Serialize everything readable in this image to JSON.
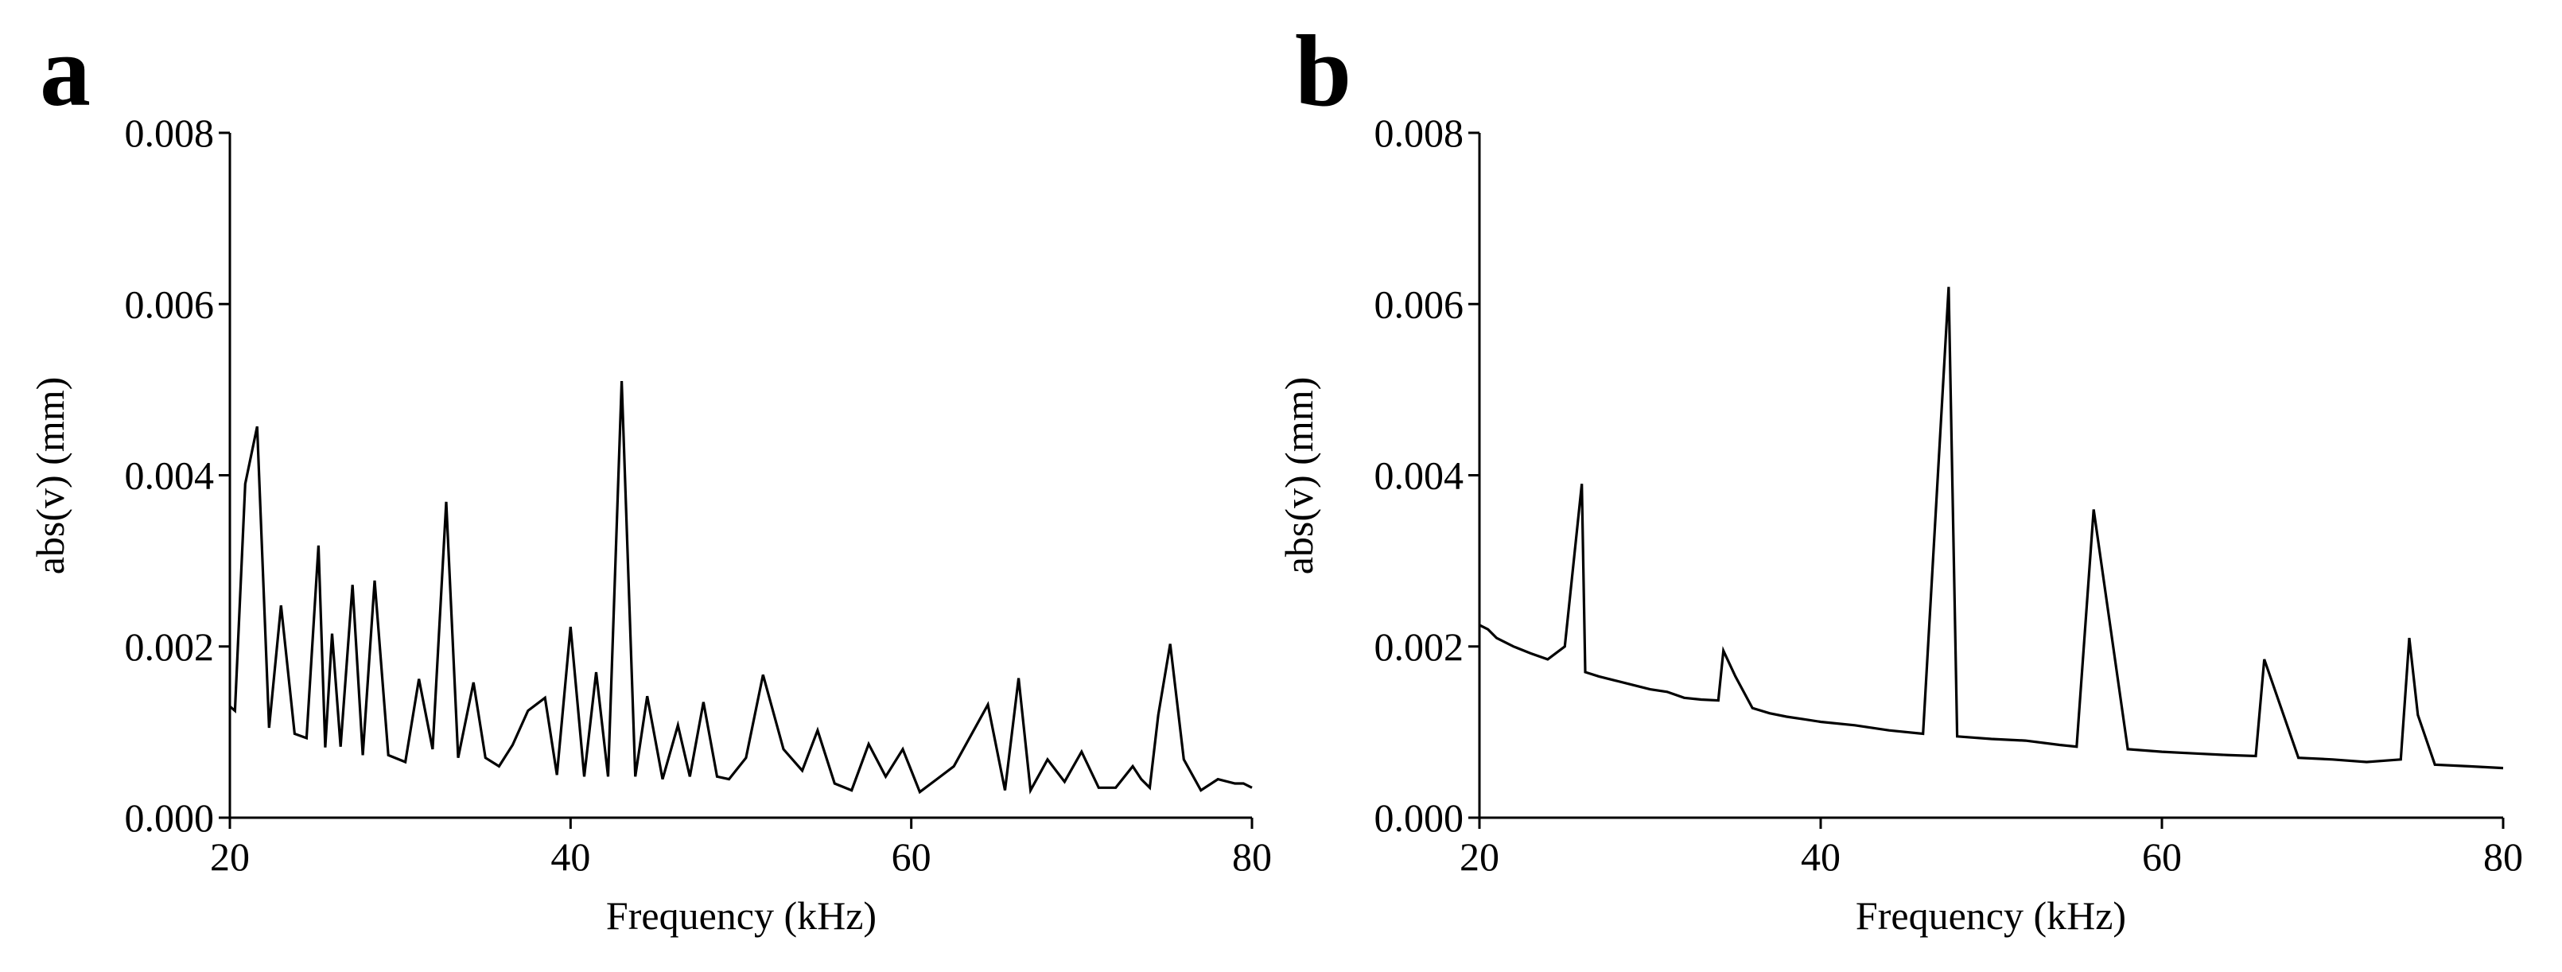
{
  "chart_data": [
    {
      "panel": "a",
      "type": "line",
      "xlabel": "Frequency (kHz)",
      "ylabel": "abs(v) (mm)",
      "xlim": [
        20,
        80
      ],
      "ylim": [
        0,
        0.008
      ],
      "xticks": [
        20,
        40,
        60,
        80
      ],
      "yticks": [
        "0.000",
        "0.002",
        "0.004",
        "0.006",
        "0.008"
      ],
      "grid": false,
      "series": [
        {
          "x": [
            20.0,
            20.3,
            20.9,
            21.6,
            22.3,
            23.0,
            23.8,
            24.5,
            25.2,
            25.6,
            26.0,
            26.5,
            27.2,
            27.8,
            28.5,
            29.3,
            30.3,
            31.1,
            31.9,
            32.7,
            33.4,
            34.3,
            35.0,
            35.8,
            36.6,
            37.5,
            38.5,
            39.2,
            40.0,
            40.8,
            41.5,
            42.2,
            43.0,
            43.8,
            44.5,
            45.4,
            46.3,
            47.0,
            47.8,
            48.6,
            49.3,
            50.3,
            51.3,
            52.5,
            53.6,
            54.5,
            55.5,
            56.5,
            57.5,
            58.5,
            59.5,
            60.5,
            61.5,
            62.5,
            64.5,
            65.5,
            66.3,
            67.0,
            68.0,
            69.0,
            70.0,
            71.0,
            72.0,
            73.0,
            73.5,
            74.0,
            74.5,
            75.2,
            76.0,
            77.0,
            78.0,
            79.0,
            79.5,
            80.0
          ],
          "y": [
            0.0013,
            0.00125,
            0.0039,
            0.00457,
            0.00105,
            0.00248,
            0.00098,
            0.00093,
            0.00318,
            0.00082,
            0.00215,
            0.00083,
            0.00272,
            0.00073,
            0.00277,
            0.00073,
            0.00065,
            0.00162,
            0.0008,
            0.00369,
            0.0007,
            0.00158,
            0.0007,
            0.0006,
            0.00085,
            0.00125,
            0.0014,
            0.0005,
            0.00223,
            0.00048,
            0.0017,
            0.00048,
            0.0051,
            0.00048,
            0.00142,
            0.00045,
            0.00108,
            0.00048,
            0.00135,
            0.00048,
            0.00045,
            0.0007,
            0.00167,
            0.0008,
            0.00055,
            0.00102,
            0.0004,
            0.00032,
            0.00086,
            0.00048,
            0.0008,
            0.0003,
            0.00045,
            0.0006,
            0.00132,
            0.00032,
            0.00163,
            0.00032,
            0.00068,
            0.00042,
            0.00077,
            0.00035,
            0.00035,
            0.0006,
            0.00045,
            0.00035,
            0.0012,
            0.00203,
            0.00068,
            0.00032,
            0.00045,
            0.0004,
            0.0004,
            0.00035
          ]
        }
      ]
    },
    {
      "panel": "b",
      "type": "line",
      "xlabel": "Frequency (kHz)",
      "ylabel": "abs(v) (mm)",
      "xlim": [
        20,
        80
      ],
      "ylim": [
        0,
        0.008
      ],
      "xticks": [
        20,
        40,
        60,
        80
      ],
      "yticks": [
        "0.000",
        "0.002",
        "0.004",
        "0.006",
        "0.008"
      ],
      "grid": false,
      "series": [
        {
          "x": [
            20.0,
            20.5,
            21.0,
            22.0,
            23.0,
            24.0,
            25.0,
            26.0,
            26.2,
            27.0,
            28.0,
            29.0,
            30.0,
            31.0,
            32.0,
            33.0,
            34.0,
            34.3,
            35.0,
            36.0,
            37.0,
            38.0,
            39.0,
            40.0,
            42.0,
            44.0,
            46.0,
            47.5,
            48.0,
            50.0,
            52.0,
            54.0,
            55.0,
            56.0,
            58.0,
            60.0,
            62.0,
            64.0,
            65.5,
            66.0,
            68.0,
            70.0,
            72.0,
            74.0,
            74.5,
            75.0,
            76.0,
            78.0,
            80.0
          ],
          "y": [
            0.00225,
            0.0022,
            0.0021,
            0.002,
            0.00192,
            0.00185,
            0.002,
            0.0039,
            0.0017,
            0.00165,
            0.0016,
            0.00155,
            0.0015,
            0.00147,
            0.0014,
            0.00138,
            0.00137,
            0.00195,
            0.00165,
            0.00128,
            0.00122,
            0.00118,
            0.00115,
            0.00112,
            0.00108,
            0.00102,
            0.00098,
            0.0062,
            0.00095,
            0.00092,
            0.0009,
            0.00085,
            0.00083,
            0.0036,
            0.0008,
            0.00077,
            0.00075,
            0.00073,
            0.00072,
            0.00185,
            0.0007,
            0.00068,
            0.00065,
            0.00068,
            0.0021,
            0.0012,
            0.00062,
            0.0006,
            0.00058
          ]
        }
      ]
    }
  ]
}
